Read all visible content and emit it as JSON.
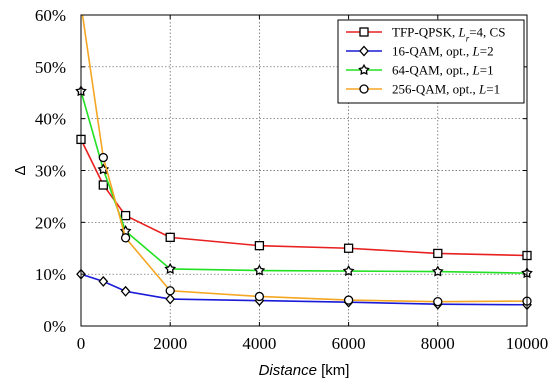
{
  "chart_data": {
    "type": "line",
    "xlabel": "Distance",
    "xlabel_unit": " [km]",
    "ylabel": "Δ",
    "xlim": [
      0,
      10000
    ],
    "ylim": [
      0,
      60
    ],
    "x_ticks": [
      0,
      2000,
      4000,
      6000,
      8000,
      10000
    ],
    "x_tick_labels": [
      "0",
      "2000",
      "4000",
      "6000",
      "8000",
      "10000"
    ],
    "y_ticks": [
      0,
      10,
      20,
      30,
      40,
      50,
      60
    ],
    "y_tick_labels": [
      "0%",
      "10%",
      "20%",
      "30%",
      "40%",
      "50%",
      "60%"
    ],
    "grid": true,
    "legend_position": "top-right",
    "series": [
      {
        "name": "TFP-QPSK, L_r=4, CS",
        "legend_parts": [
          {
            "t": "TFP-QPSK, "
          },
          {
            "t": "L",
            "italic": true
          },
          {
            "t": "r",
            "italic": true,
            "sub": true
          },
          {
            "t": "=4, CS"
          }
        ],
        "color": "#e82020",
        "marker": "square",
        "x": [
          0,
          500,
          1000,
          2000,
          4000,
          6000,
          8000,
          10000
        ],
        "y": [
          36,
          27.2,
          21.3,
          17.1,
          15.5,
          15.0,
          14.0,
          13.6
        ]
      },
      {
        "name": "16-QAM, opt., L=2",
        "legend_parts": [
          {
            "t": "16-QAM, opt., "
          },
          {
            "t": "L",
            "italic": true
          },
          {
            "t": "=2"
          }
        ],
        "color": "#1a1ad8",
        "marker": "diamond",
        "x": [
          0,
          500,
          1000,
          2000,
          4000,
          6000,
          8000,
          10000
        ],
        "y": [
          10,
          8.6,
          6.7,
          5.2,
          4.9,
          4.6,
          4.2,
          4.1
        ]
      },
      {
        "name": "64-QAM, opt., L=1",
        "legend_parts": [
          {
            "t": "64-QAM, opt., "
          },
          {
            "t": "L",
            "italic": true
          },
          {
            "t": "=1"
          }
        ],
        "color": "#22e022",
        "marker": "star",
        "x": [
          0,
          500,
          1000,
          2000,
          4000,
          6000,
          8000,
          10000
        ],
        "y": [
          45.3,
          30.2,
          18.3,
          11.0,
          10.7,
          10.6,
          10.5,
          10.2
        ]
      },
      {
        "name": "256-QAM, opt., L=1",
        "legend_parts": [
          {
            "t": "256-QAM, opt., "
          },
          {
            "t": "L",
            "italic": true
          },
          {
            "t": "=1"
          }
        ],
        "color": "#f5a623",
        "marker": "circle",
        "x": [
          0,
          500,
          1000,
          2000,
          4000,
          6000,
          8000,
          10000
        ],
        "y": [
          62,
          32.5,
          17.0,
          6.8,
          5.7,
          5.0,
          4.7,
          4.8
        ]
      }
    ]
  }
}
